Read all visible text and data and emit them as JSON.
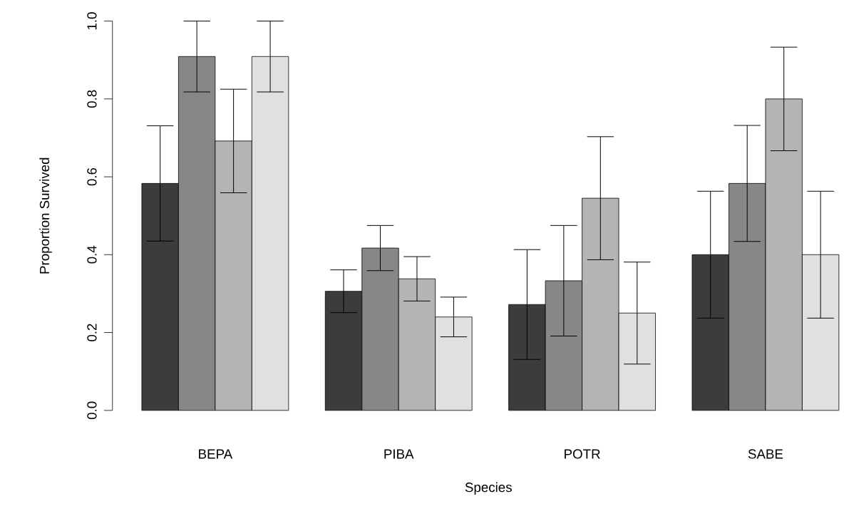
{
  "chart_data": {
    "type": "bar",
    "xlabel": "Species",
    "ylabel": "Proportion Survived",
    "categories": [
      "BEPA",
      "PIBA",
      "POTR",
      "SABE"
    ],
    "ylim": [
      0,
      1
    ],
    "yticks": [
      {
        "value": 0,
        "label": "0.0"
      },
      0.2,
      0.4,
      0.6,
      0.8,
      {
        "value": 1,
        "label": "1.0"
      }
    ],
    "series": [
      {
        "color": "#3c3c3c",
        "values": [
          0.583,
          0.306,
          0.272,
          0.4
        ],
        "errors": [
          0.148,
          0.055,
          0.141,
          0.163
        ]
      },
      {
        "color": "#878787",
        "values": [
          0.909,
          0.417,
          0.333,
          0.583
        ],
        "errors": [
          0.091,
          0.058,
          0.142,
          0.149
        ]
      },
      {
        "color": "#b4b4b4",
        "values": [
          0.692,
          0.338,
          0.545,
          0.8
        ],
        "errors": [
          0.133,
          0.057,
          0.158,
          0.133
        ]
      },
      {
        "color": "#e0e0e0",
        "values": [
          0.909,
          0.24,
          0.25,
          0.4
        ],
        "errors": [
          0.091,
          0.051,
          0.131,
          0.163
        ]
      }
    ]
  }
}
